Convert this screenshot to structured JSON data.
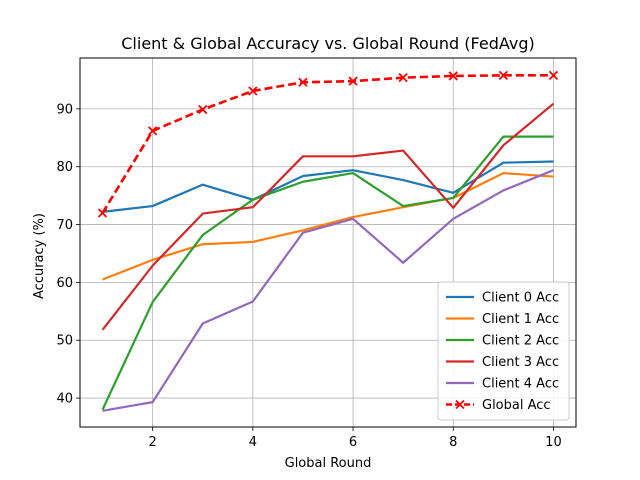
{
  "chart_data": {
    "type": "line",
    "title": "Client & Global Accuracy vs. Global Round (FedAvg)",
    "xlabel": "Global Round",
    "ylabel": "Accuracy (%)",
    "x": [
      1,
      2,
      3,
      4,
      5,
      6,
      7,
      8,
      9,
      10
    ],
    "xticks": [
      2,
      4,
      6,
      8,
      10
    ],
    "yticks": [
      40,
      50,
      60,
      70,
      80,
      90
    ],
    "xlim": [
      0.55,
      10.45
    ],
    "ylim": [
      35.0,
      98.8
    ],
    "grid": true,
    "legend_position": "lower-right",
    "series": [
      {
        "name": "Client 0 Acc",
        "color": "#1f77b4",
        "style": "solid",
        "marker": "none",
        "values": [
          72.2,
          73.2,
          76.9,
          74.3,
          78.4,
          79.4,
          77.7,
          75.5,
          80.7,
          80.9
        ]
      },
      {
        "name": "Client 1 Acc",
        "color": "#ff7f0e",
        "style": "solid",
        "marker": "none",
        "values": [
          60.5,
          63.9,
          66.6,
          67.0,
          69.0,
          71.3,
          73.0,
          74.6,
          78.9,
          78.3
        ]
      },
      {
        "name": "Client 2 Acc",
        "color": "#2ca02c",
        "style": "solid",
        "marker": "none",
        "values": [
          38.0,
          56.6,
          68.2,
          74.3,
          77.4,
          78.9,
          73.2,
          74.6,
          85.2,
          85.2
        ]
      },
      {
        "name": "Client 3 Acc",
        "color": "#d62728",
        "style": "solid",
        "marker": "none",
        "values": [
          51.8,
          62.9,
          71.9,
          73.0,
          81.8,
          81.8,
          82.8,
          72.9,
          83.7,
          90.9
        ]
      },
      {
        "name": "Client 4 Acc",
        "color": "#9467bd",
        "style": "solid",
        "marker": "none",
        "values": [
          37.8,
          39.3,
          52.9,
          56.7,
          68.6,
          71.0,
          63.4,
          71.0,
          75.9,
          79.4
        ]
      },
      {
        "name": "Global Acc",
        "color": "#ff0000",
        "style": "dashed",
        "marker": "x",
        "values": [
          72.0,
          86.2,
          89.9,
          93.1,
          94.6,
          94.8,
          95.4,
          95.7,
          95.8,
          95.8
        ]
      }
    ]
  }
}
